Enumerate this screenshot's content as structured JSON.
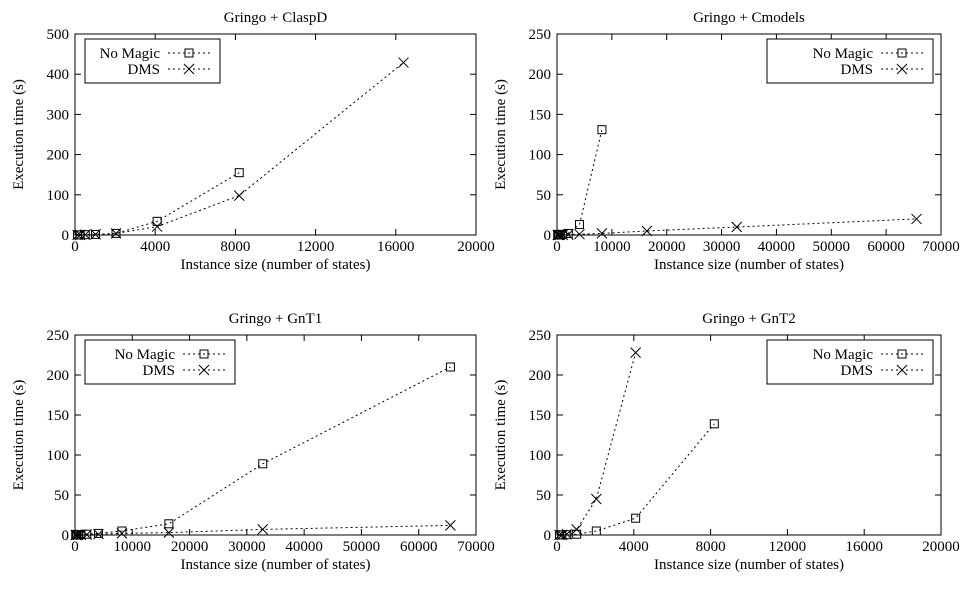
{
  "chart_data": [
    {
      "type": "line",
      "title": "Gringo + ClaspD",
      "xlabel": "Instance size (number of states)",
      "ylabel": "Execution time (s)",
      "xlim": [
        0,
        20000
      ],
      "ylim": [
        0,
        500
      ],
      "xticks": [
        0,
        4000,
        8000,
        12000,
        16000,
        20000
      ],
      "yticks": [
        0,
        100,
        200,
        300,
        400,
        500
      ],
      "legend": "top-left",
      "series": [
        {
          "name": "No Magic",
          "marker": "square",
          "x": [
            128,
            256,
            512,
            1024,
            2048,
            4096,
            8192
          ],
          "y": [
            0.2,
            0.4,
            0.8,
            1.5,
            4,
            34,
            155
          ]
        },
        {
          "name": "DMS",
          "marker": "cross",
          "x": [
            128,
            256,
            512,
            1024,
            2048,
            4096,
            8192,
            16384
          ],
          "y": [
            0.2,
            0.4,
            0.8,
            1.5,
            4,
            21,
            98,
            429
          ]
        }
      ]
    },
    {
      "type": "line",
      "title": "Gringo + Cmodels",
      "xlabel": "Instance size (number of states)",
      "ylabel": "Execution time (s)",
      "xlim": [
        0,
        70000
      ],
      "ylim": [
        0,
        250
      ],
      "xticks": [
        0,
        10000,
        20000,
        30000,
        40000,
        50000,
        60000,
        70000
      ],
      "yticks": [
        0,
        50,
        100,
        150,
        200,
        250
      ],
      "legend": "top-right",
      "series": [
        {
          "name": "No Magic",
          "marker": "square",
          "x": [
            128,
            256,
            512,
            1024,
            2048,
            4096,
            8192
          ],
          "y": [
            0.1,
            0.2,
            0.4,
            0.8,
            2,
            13,
            131
          ]
        },
        {
          "name": "DMS",
          "marker": "cross",
          "x": [
            128,
            256,
            512,
            1024,
            2048,
            4096,
            8192,
            16384,
            32768,
            65536
          ],
          "y": [
            0.1,
            0.1,
            0.2,
            0.3,
            0.5,
            1,
            2,
            5,
            10,
            20
          ]
        }
      ]
    },
    {
      "type": "line",
      "title": "Gringo + GnT1",
      "xlabel": "Instance size (number of states)",
      "ylabel": "Execution time (s)",
      "xlim": [
        0,
        70000
      ],
      "ylim": [
        0,
        250
      ],
      "xticks": [
        0,
        10000,
        20000,
        30000,
        40000,
        50000,
        60000,
        70000
      ],
      "yticks": [
        0,
        50,
        100,
        150,
        200,
        250
      ],
      "legend": "top-left",
      "series": [
        {
          "name": "No Magic",
          "marker": "square",
          "x": [
            128,
            256,
            512,
            1024,
            2048,
            4096,
            8192,
            16384,
            32768,
            65536
          ],
          "y": [
            0.1,
            0.2,
            0.3,
            0.5,
            1,
            2,
            5,
            14,
            89,
            210
          ]
        },
        {
          "name": "DMS",
          "marker": "cross",
          "x": [
            128,
            256,
            512,
            1024,
            2048,
            4096,
            8192,
            16384,
            32768,
            65536
          ],
          "y": [
            0.1,
            0.1,
            0.2,
            0.3,
            0.5,
            1,
            2,
            3,
            7,
            12
          ]
        }
      ]
    },
    {
      "type": "line",
      "title": "Gringo + GnT2",
      "xlabel": "Instance size (number of states)",
      "ylabel": "Execution time (s)",
      "xlim": [
        0,
        20000
      ],
      "ylim": [
        0,
        250
      ],
      "xticks": [
        0,
        4000,
        8000,
        12000,
        16000,
        20000
      ],
      "yticks": [
        0,
        50,
        100,
        150,
        200,
        250
      ],
      "legend": "top-right",
      "series": [
        {
          "name": "No Magic",
          "marker": "square",
          "x": [
            128,
            256,
            512,
            1024,
            2048,
            4096,
            8192
          ],
          "y": [
            0.1,
            0.2,
            0.4,
            1,
            5,
            21,
            139
          ]
        },
        {
          "name": "DMS",
          "marker": "cross",
          "x": [
            128,
            256,
            512,
            1024,
            2048,
            4096
          ],
          "y": [
            0.1,
            0.2,
            1,
            7,
            45,
            228
          ]
        }
      ]
    }
  ]
}
